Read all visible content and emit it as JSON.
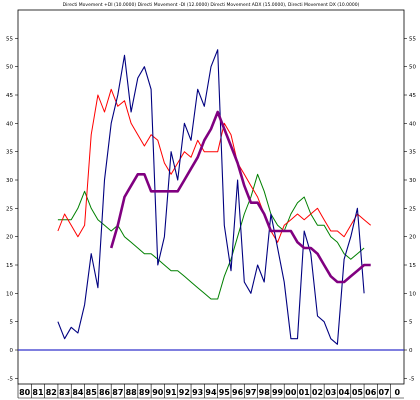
{
  "chart_data": {
    "type": "line",
    "title": "Directi Movement +DI (10.0000) Directi Movement -DI (12.0000) Directi Movement ADX (15.0000), Directi Movement DX (10.0000)",
    "xlabel": "",
    "ylabel": "",
    "x_tick_labels": [
      "80",
      "81",
      "82",
      "83",
      "84",
      "85",
      "86",
      "87",
      "88",
      "89",
      "90",
      "91",
      "92",
      "93",
      "94",
      "95",
      "96",
      "97",
      "98",
      "99",
      "00",
      "01",
      "02",
      "03",
      "04",
      "05",
      "06",
      "07",
      "0"
    ],
    "ylim": [
      -6,
      60
    ],
    "y_ticks": [
      -5,
      0,
      5,
      10,
      15,
      20,
      25,
      30,
      35,
      40,
      45,
      50,
      55
    ],
    "zero_line": 0,
    "grid": false,
    "colors": {
      "plus_di": "#ff0000",
      "minus_di": "#008000",
      "adx": "#800080",
      "dx": "#000080",
      "zero_line": "#3333cc",
      "axis": "#000000"
    },
    "series": [
      {
        "key": "plus_di",
        "points": [
          [
            83.0,
            21
          ],
          [
            83.5,
            24
          ],
          [
            84.0,
            22
          ],
          [
            84.5,
            20
          ],
          [
            85.0,
            22
          ],
          [
            85.5,
            38
          ],
          [
            86.0,
            45
          ],
          [
            86.5,
            42
          ],
          [
            87.0,
            46
          ],
          [
            87.5,
            43
          ],
          [
            88.0,
            44
          ],
          [
            88.5,
            40
          ],
          [
            89.0,
            38
          ],
          [
            89.5,
            36
          ],
          [
            90.0,
            38
          ],
          [
            90.5,
            37
          ],
          [
            91.0,
            33
          ],
          [
            91.5,
            31
          ],
          [
            92.0,
            33
          ],
          [
            92.5,
            35
          ],
          [
            93.0,
            34
          ],
          [
            93.5,
            37
          ],
          [
            94.0,
            35
          ],
          [
            94.5,
            35
          ],
          [
            95.0,
            35
          ],
          [
            95.5,
            40
          ],
          [
            96.0,
            38
          ],
          [
            96.5,
            33
          ],
          [
            97.0,
            31
          ],
          [
            97.5,
            29
          ],
          [
            98.0,
            27
          ],
          [
            98.5,
            24
          ],
          [
            99.0,
            21
          ],
          [
            99.5,
            19
          ],
          [
            100.0,
            22
          ],
          [
            100.5,
            23
          ],
          [
            101.0,
            24
          ],
          [
            101.5,
            23
          ],
          [
            102.0,
            24
          ],
          [
            102.5,
            25
          ],
          [
            103.0,
            23
          ],
          [
            103.5,
            21
          ],
          [
            104.0,
            21
          ],
          [
            104.5,
            20
          ],
          [
            105.0,
            22
          ],
          [
            105.5,
            24
          ],
          [
            106.0,
            23
          ],
          [
            106.5,
            22
          ]
        ]
      },
      {
        "key": "minus_di",
        "points": [
          [
            83.0,
            23
          ],
          [
            83.5,
            23
          ],
          [
            84.0,
            23
          ],
          [
            84.5,
            25
          ],
          [
            85.0,
            28
          ],
          [
            85.5,
            25
          ],
          [
            86.0,
            23
          ],
          [
            86.5,
            22
          ],
          [
            87.0,
            21
          ],
          [
            87.5,
            22
          ],
          [
            88.0,
            20
          ],
          [
            88.5,
            19
          ],
          [
            89.0,
            18
          ],
          [
            89.5,
            17
          ],
          [
            90.0,
            17
          ],
          [
            90.5,
            16
          ],
          [
            91.0,
            15
          ],
          [
            91.5,
            14
          ],
          [
            92.0,
            14
          ],
          [
            92.5,
            13
          ],
          [
            93.0,
            12
          ],
          [
            93.5,
            11
          ],
          [
            94.0,
            10
          ],
          [
            94.5,
            9
          ],
          [
            95.0,
            9
          ],
          [
            95.5,
            13
          ],
          [
            96.0,
            16
          ],
          [
            96.5,
            20
          ],
          [
            97.0,
            24
          ],
          [
            97.5,
            27
          ],
          [
            98.0,
            31
          ],
          [
            98.5,
            28
          ],
          [
            99.0,
            24
          ],
          [
            99.5,
            22
          ],
          [
            100.0,
            21
          ],
          [
            100.5,
            24
          ],
          [
            101.0,
            26
          ],
          [
            101.5,
            27
          ],
          [
            102.0,
            24
          ],
          [
            102.5,
            22
          ],
          [
            103.0,
            22
          ],
          [
            103.5,
            20
          ],
          [
            104.0,
            19
          ],
          [
            104.5,
            17
          ],
          [
            105.0,
            16
          ],
          [
            105.5,
            17
          ],
          [
            106.0,
            18
          ]
        ]
      },
      {
        "key": "adx",
        "points": [
          [
            87.0,
            18
          ],
          [
            87.5,
            22
          ],
          [
            88.0,
            27
          ],
          [
            88.5,
            29
          ],
          [
            89.0,
            31
          ],
          [
            89.5,
            31
          ],
          [
            90.0,
            28
          ],
          [
            90.5,
            28
          ],
          [
            91.0,
            28
          ],
          [
            91.5,
            28
          ],
          [
            92.0,
            28
          ],
          [
            92.5,
            30
          ],
          [
            93.0,
            32
          ],
          [
            93.5,
            34
          ],
          [
            94.0,
            37
          ],
          [
            94.5,
            39
          ],
          [
            95.0,
            42
          ],
          [
            95.5,
            39
          ],
          [
            96.0,
            36
          ],
          [
            96.5,
            33
          ],
          [
            97.0,
            29
          ],
          [
            97.5,
            26
          ],
          [
            98.0,
            26
          ],
          [
            98.5,
            24
          ],
          [
            99.0,
            21
          ],
          [
            99.5,
            21
          ],
          [
            100.0,
            21
          ],
          [
            100.5,
            21
          ],
          [
            101.0,
            19
          ],
          [
            101.5,
            18
          ],
          [
            102.0,
            18
          ],
          [
            102.5,
            17
          ],
          [
            103.0,
            15
          ],
          [
            103.5,
            13
          ],
          [
            104.0,
            12
          ],
          [
            104.5,
            12
          ],
          [
            105.0,
            13
          ],
          [
            105.5,
            14
          ],
          [
            106.0,
            15
          ],
          [
            106.5,
            15
          ]
        ]
      },
      {
        "key": "dx",
        "points": [
          [
            83.0,
            5
          ],
          [
            83.5,
            2
          ],
          [
            84.0,
            4
          ],
          [
            84.5,
            3
          ],
          [
            85.0,
            8
          ],
          [
            85.5,
            17
          ],
          [
            86.0,
            11
          ],
          [
            86.5,
            30
          ],
          [
            87.0,
            40
          ],
          [
            87.5,
            45
          ],
          [
            88.0,
            52
          ],
          [
            88.5,
            42
          ],
          [
            89.0,
            48
          ],
          [
            89.5,
            50
          ],
          [
            90.0,
            46
          ],
          [
            90.5,
            15
          ],
          [
            91.0,
            20
          ],
          [
            91.5,
            35
          ],
          [
            92.0,
            30
          ],
          [
            92.5,
            40
          ],
          [
            93.0,
            37
          ],
          [
            93.5,
            46
          ],
          [
            94.0,
            43
          ],
          [
            94.5,
            50
          ],
          [
            95.0,
            53
          ],
          [
            95.5,
            22
          ],
          [
            96.0,
            14
          ],
          [
            96.5,
            30
          ],
          [
            97.0,
            12
          ],
          [
            97.5,
            10
          ],
          [
            98.0,
            15
          ],
          [
            98.5,
            12
          ],
          [
            99.0,
            24
          ],
          [
            99.5,
            18
          ],
          [
            100.0,
            12
          ],
          [
            100.5,
            2
          ],
          [
            101.0,
            2
          ],
          [
            101.5,
            21
          ],
          [
            102.0,
            17
          ],
          [
            102.5,
            6
          ],
          [
            103.0,
            5
          ],
          [
            103.5,
            2
          ],
          [
            104.0,
            1
          ],
          [
            104.5,
            16
          ],
          [
            105.0,
            20
          ],
          [
            105.5,
            25
          ],
          [
            106.0,
            10
          ]
        ]
      }
    ]
  }
}
